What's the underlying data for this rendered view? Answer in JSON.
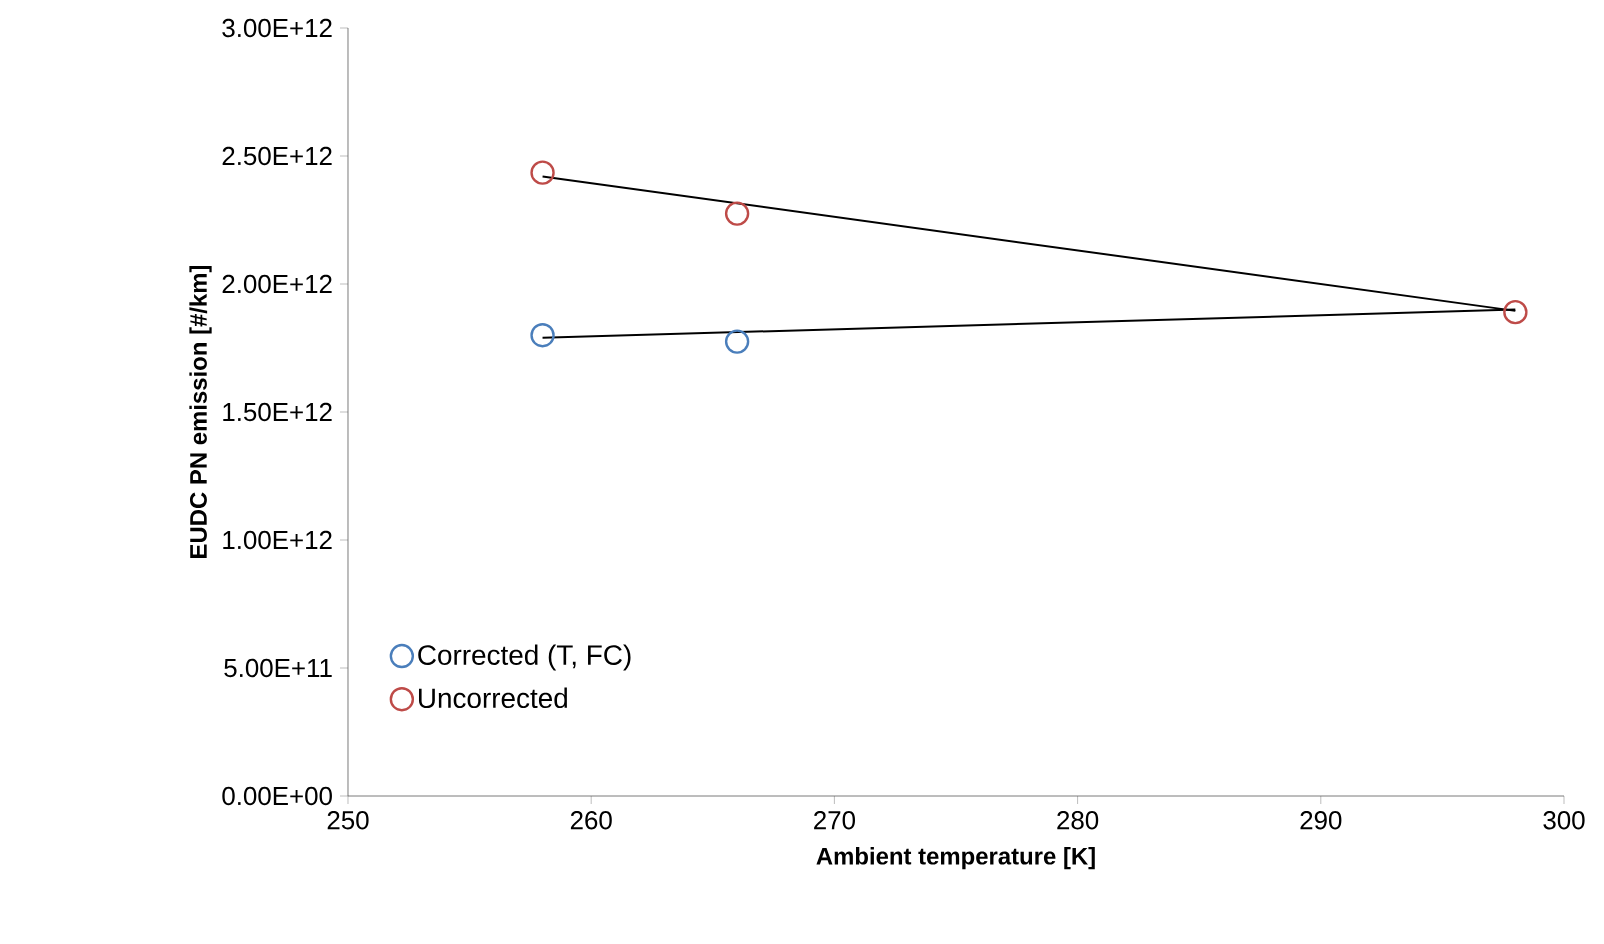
{
  "chart_data": {
    "type": "scatter",
    "xlabel": "Ambient temperature [K]",
    "ylabel": "EUDC PN emission [#/km]",
    "xlim": [
      250,
      300
    ],
    "xticks": [
      250,
      260,
      270,
      280,
      290,
      300
    ],
    "ylim": [
      0,
      3000000000000.0
    ],
    "yticks": [
      {
        "value": 0,
        "label": "0.00E+00"
      },
      {
        "value": 500000000000.0,
        "label": "5.00E+11"
      },
      {
        "value": 1000000000000.0,
        "label": "1.00E+12"
      },
      {
        "value": 1500000000000.0,
        "label": "1.50E+12"
      },
      {
        "value": 2000000000000.0,
        "label": "2.00E+12"
      },
      {
        "value": 2500000000000.0,
        "label": "2.50E+12"
      },
      {
        "value": 3000000000000.0,
        "label": "3.00E+12"
      }
    ],
    "marker": "circle",
    "legend": "bottom left",
    "grid": false,
    "series": [
      {
        "name": "Corrected (T, FC)",
        "color": "#4a7ebb",
        "x": [
          258,
          266
        ],
        "values": [
          1800000000000.0,
          1775000000000.0
        ]
      },
      {
        "name": "Uncorrected",
        "color": "#be4b48",
        "x": [
          258,
          266,
          298
        ],
        "values": [
          2435000000000.0,
          2275000000000.0,
          1890000000000.0
        ]
      },
      {
        "type": "line",
        "marker": "none",
        "color": "#000000",
        "x": [
          258,
          298
        ],
        "values": [
          1790000000000.0,
          1900000000000.0
        ]
      },
      {
        "type": "line",
        "marker": "none",
        "color": "#000000",
        "x": [
          258,
          298
        ],
        "values": [
          2420000000000.0,
          1895000000000.0
        ]
      }
    ]
  }
}
